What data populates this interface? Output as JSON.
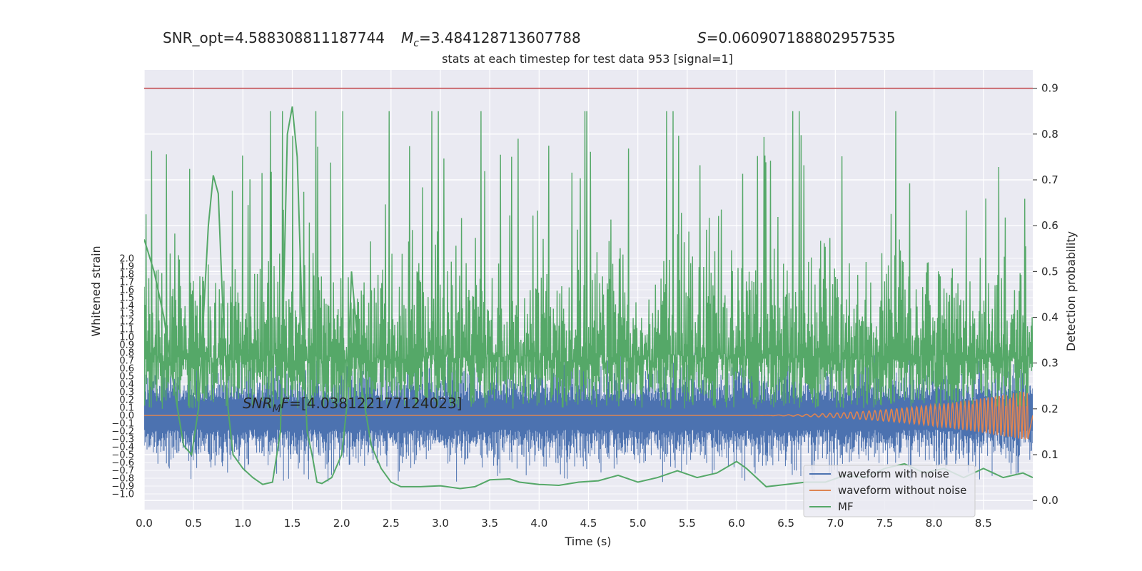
{
  "header": {
    "snr_opt": "SNR_opt=4.588308811187744",
    "mc_symbol": "M",
    "mc_sub": "c",
    "mc_value": "=3.484128713607788",
    "s_symbol": "S",
    "s_value": "=0.060907188802957535",
    "subtitle": "stats at each timestep for test data 953 [signal=1]"
  },
  "annotation": {
    "snr_mf_symbol": "SNR",
    "snr_mf_sub": "M",
    "snr_mf_tail": "F",
    "snr_mf_value": "=[4.038122177124023]"
  },
  "chart_data": {
    "type": "line",
    "title": "stats at each timestep for test data 953 [signal=1]",
    "xlabel": "Time (s)",
    "ylabel": "Whitened strain",
    "ylabel_right": "Detection probability",
    "xlim": [
      0.0,
      9.0
    ],
    "ylim": [
      -1.2,
      4.4
    ],
    "ylim_right": [
      -0.02,
      0.94
    ],
    "x_ticks": [
      "0.0",
      "0.5",
      "1.0",
      "1.5",
      "2.0",
      "2.5",
      "3.0",
      "3.5",
      "4.0",
      "4.5",
      "5.0",
      "5.5",
      "6.0",
      "6.5",
      "7.0",
      "7.5",
      "8.0",
      "8.5"
    ],
    "y_ticks": [
      "−1.0",
      "−0.9",
      "−0.8",
      "−0.7",
      "−0.6",
      "−0.5",
      "−0.4",
      "−0.3",
      "−0.2",
      "−0.1",
      "0.0",
      "0.1",
      "0.2",
      "0.3",
      "0.4",
      "0.5",
      "0.6",
      "0.7",
      "0.8",
      "0.9",
      "1.0",
      "1.1",
      "1.2",
      "1.3",
      "1.4",
      "1.5",
      "1.6",
      "1.7",
      "1.8",
      "1.9",
      "2.0"
    ],
    "y_right_ticks": [
      "0.0",
      "0.1",
      "0.2",
      "0.3",
      "0.4",
      "0.5",
      "0.6",
      "0.7",
      "0.8",
      "0.9"
    ],
    "threshold": 0.9,
    "legend": [
      "waveform with noise",
      "waveform without noise",
      "MF"
    ],
    "legend_position": "lower-right",
    "grid": true,
    "series": [
      {
        "name": "waveform with noise",
        "color": "#4c72b0",
        "style": "dense noise",
        "value_range": [
          -0.85,
          0.85
        ]
      },
      {
        "name": "waveform without noise",
        "color": "#dd8452",
        "style": "chirp",
        "chirp_start": 6.0,
        "chirp_end": 8.95,
        "amplitude_max": 0.32
      },
      {
        "name": "MF",
        "color": "#55a868",
        "axis": "right",
        "x": [
          0.0,
          0.1,
          0.2,
          0.3,
          0.4,
          0.48,
          0.55,
          0.65,
          0.7,
          0.75,
          0.8,
          0.85,
          0.9,
          1.0,
          1.1,
          1.2,
          1.3,
          1.38,
          1.45,
          1.5,
          1.55,
          1.6,
          1.65,
          1.7,
          1.75,
          1.8,
          1.9,
          2.0,
          2.05,
          2.1,
          2.2,
          2.3,
          2.4,
          2.5,
          2.6,
          2.8,
          3.0,
          3.2,
          3.35,
          3.5,
          3.7,
          3.8,
          4.0,
          4.2,
          4.4,
          4.6,
          4.8,
          5.0,
          5.2,
          5.4,
          5.6,
          5.8,
          6.0,
          6.1,
          6.3,
          6.5,
          6.7,
          6.9,
          7.1,
          7.3,
          7.5,
          7.7,
          7.9,
          8.1,
          8.3,
          8.5,
          8.7,
          8.9,
          9.0
        ],
        "y": [
          0.57,
          0.5,
          0.4,
          0.25,
          0.12,
          0.1,
          0.2,
          0.6,
          0.71,
          0.67,
          0.4,
          0.2,
          0.1,
          0.07,
          0.05,
          0.035,
          0.04,
          0.15,
          0.8,
          0.86,
          0.75,
          0.4,
          0.15,
          0.1,
          0.04,
          0.037,
          0.05,
          0.1,
          0.2,
          0.5,
          0.25,
          0.12,
          0.07,
          0.04,
          0.03,
          0.03,
          0.032,
          0.026,
          0.03,
          0.045,
          0.047,
          0.04,
          0.035,
          0.033,
          0.04,
          0.043,
          0.055,
          0.04,
          0.05,
          0.065,
          0.05,
          0.06,
          0.085,
          0.07,
          0.03,
          0.035,
          0.04,
          0.04,
          0.055,
          0.05,
          0.07,
          0.08,
          0.06,
          0.07,
          0.05,
          0.07,
          0.05,
          0.06,
          0.05
        ],
        "spike_band": [
          0.2,
          0.9
        ]
      }
    ]
  }
}
